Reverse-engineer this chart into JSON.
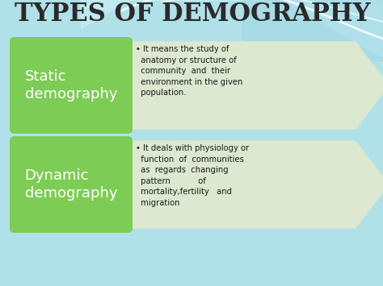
{
  "title": "TYPES OF DEMOGRAPHY",
  "title_color": "#2a2a2a",
  "title_font_size": 22,
  "bg_color": "#b8e8ec",
  "box1_label": "Static\ndemography",
  "box2_label": "Dynamic\ndemography",
  "box_color": "#7dcc55",
  "box_text_color": "#ffffff",
  "arrow_color": "#dce8d0",
  "text1_line1": "• It means the study of",
  "text1_line2": "  anatomy or structure of",
  "text1_line3": "  community  and  their",
  "text1_line4": "  environment in the given",
  "text1_line5": "  population.",
  "text2_line1": "• It deals with physiology or",
  "text2_line2": "  function  of  communities",
  "text2_line3": "  as  regards  changing",
  "text2_line4": "  pattern           of",
  "text2_line5": "  mortality,fertility   and",
  "text2_line6": "  migration",
  "text_color": "#1a1a1a",
  "wave_color1": "#ffffff",
  "wave_color2": "#a0dce4"
}
